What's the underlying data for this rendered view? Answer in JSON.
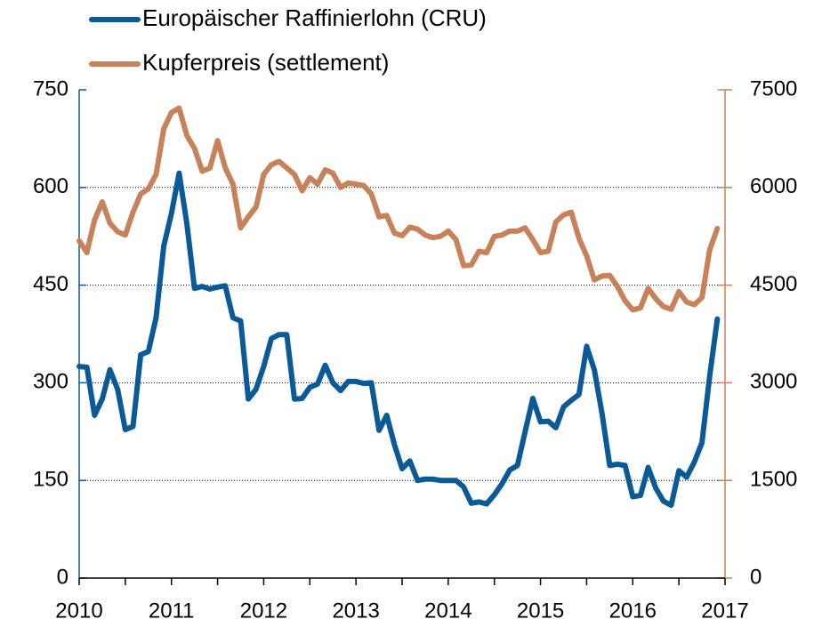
{
  "chart_data": {
    "type": "line",
    "series": [
      {
        "name": "Europäischer Raffinierlohn (CRU)",
        "color": "#0b5a98",
        "axis": "y",
        "values": [
          325,
          324,
          250,
          275,
          320,
          290,
          228,
          233,
          343,
          348,
          400,
          510,
          560,
          622,
          545,
          445,
          448,
          444,
          447,
          449,
          400,
          395,
          275,
          290,
          325,
          368,
          374,
          374,
          275,
          276,
          293,
          298,
          327,
          300,
          288,
          302,
          302,
          299,
          300,
          227,
          250,
          205,
          168,
          180,
          150,
          152,
          152,
          150,
          150,
          150,
          140,
          115,
          117,
          114,
          128,
          145,
          166,
          173,
          225,
          276,
          240,
          241,
          231,
          263,
          273,
          282,
          356,
          320,
          253,
          173,
          175,
          173,
          125,
          127,
          170,
          138,
          118,
          112,
          165,
          155,
          178,
          208,
          310,
          398
        ]
      },
      {
        "name": "Kupferpreis (settlement)",
        "color": "#c8825a",
        "axis": "y2",
        "values": [
          5180,
          5000,
          5500,
          5780,
          5450,
          5320,
          5270,
          5620,
          5900,
          5980,
          6200,
          6900,
          7150,
          7220,
          6800,
          6600,
          6250,
          6300,
          6720,
          6300,
          6050,
          5380,
          5550,
          5700,
          6200,
          6350,
          6400,
          6300,
          6200,
          5950,
          6150,
          6050,
          6270,
          6220,
          6000,
          6070,
          6050,
          6030,
          5900,
          5550,
          5570,
          5300,
          5260,
          5390,
          5360,
          5270,
          5230,
          5250,
          5330,
          5200,
          4800,
          4810,
          5020,
          5000,
          5250,
          5270,
          5330,
          5330,
          5380,
          5200,
          5000,
          5020,
          5470,
          5580,
          5620,
          5220,
          4950,
          4580,
          4640,
          4650,
          4480,
          4260,
          4120,
          4150,
          4450,
          4290,
          4170,
          4130,
          4400,
          4240,
          4200,
          4310,
          5040,
          5370
        ]
      }
    ],
    "xlim": [
      0,
      84
    ],
    "xticks": [
      {
        "value": 0,
        "label": "2010"
      },
      {
        "value": 12,
        "label": "2011"
      },
      {
        "value": 24,
        "label": "2012"
      },
      {
        "value": 36,
        "label": "2013"
      },
      {
        "value": 48,
        "label": "2014"
      },
      {
        "value": 60,
        "label": "2015"
      },
      {
        "value": 72,
        "label": "2016"
      },
      {
        "value": 84,
        "label": "2017"
      }
    ],
    "xminorticks": [
      6,
      18,
      30,
      42,
      54,
      66,
      78
    ],
    "ylim": [
      0,
      750
    ],
    "yticks": [
      0,
      150,
      300,
      450,
      600,
      750
    ],
    "y2lim": [
      0,
      7500
    ],
    "y2ticks": [
      0,
      1500,
      3000,
      4500,
      6000,
      7500
    ],
    "grid": true
  }
}
